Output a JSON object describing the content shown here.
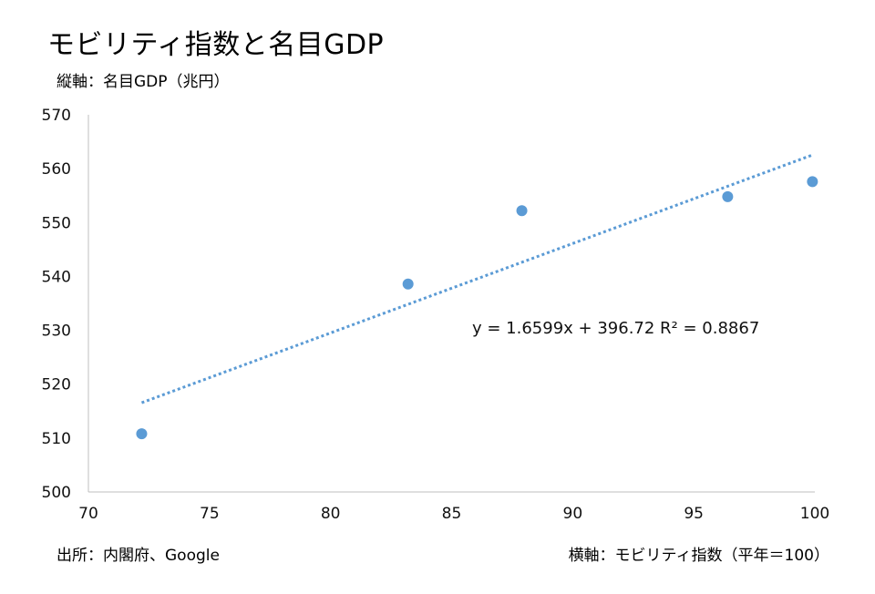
{
  "chart_data": {
    "type": "scatter",
    "title": "モビリティ指数と名目GDP",
    "ylabel": "縦軸：名目GDP（兆円）",
    "xlabel": "横軸：モビリティ指数（平年＝100）",
    "source": "出所：内閣府、Google",
    "xlim": [
      70,
      100
    ],
    "ylim": [
      500,
      570
    ],
    "x_ticks": [
      70,
      75,
      80,
      85,
      90,
      95,
      100
    ],
    "y_ticks": [
      500,
      510,
      520,
      530,
      540,
      550,
      560,
      570
    ],
    "x_tick_labels": [
      "70",
      "75",
      "80",
      "85",
      "90",
      "95",
      "100"
    ],
    "y_tick_labels": [
      "500",
      "510",
      "520",
      "530",
      "540",
      "550",
      "560",
      "570"
    ],
    "points": [
      {
        "x": 72.2,
        "y": 510.8
      },
      {
        "x": 83.2,
        "y": 538.6
      },
      {
        "x": 87.9,
        "y": 552.2
      },
      {
        "x": 96.4,
        "y": 554.8
      },
      {
        "x": 99.9,
        "y": 557.6
      }
    ],
    "trendline": {
      "type": "linear",
      "slope": 1.6599,
      "intercept": 396.72,
      "x_range": [
        72.2,
        99.9
      ],
      "label": "y = 1.6599x + 396.72  R² = 0.8867"
    },
    "grid": false,
    "legend": "none",
    "colors": {
      "point": "#5B9BD5",
      "trendline": "#5B9BD5",
      "axis": "#BFBFBF"
    }
  }
}
